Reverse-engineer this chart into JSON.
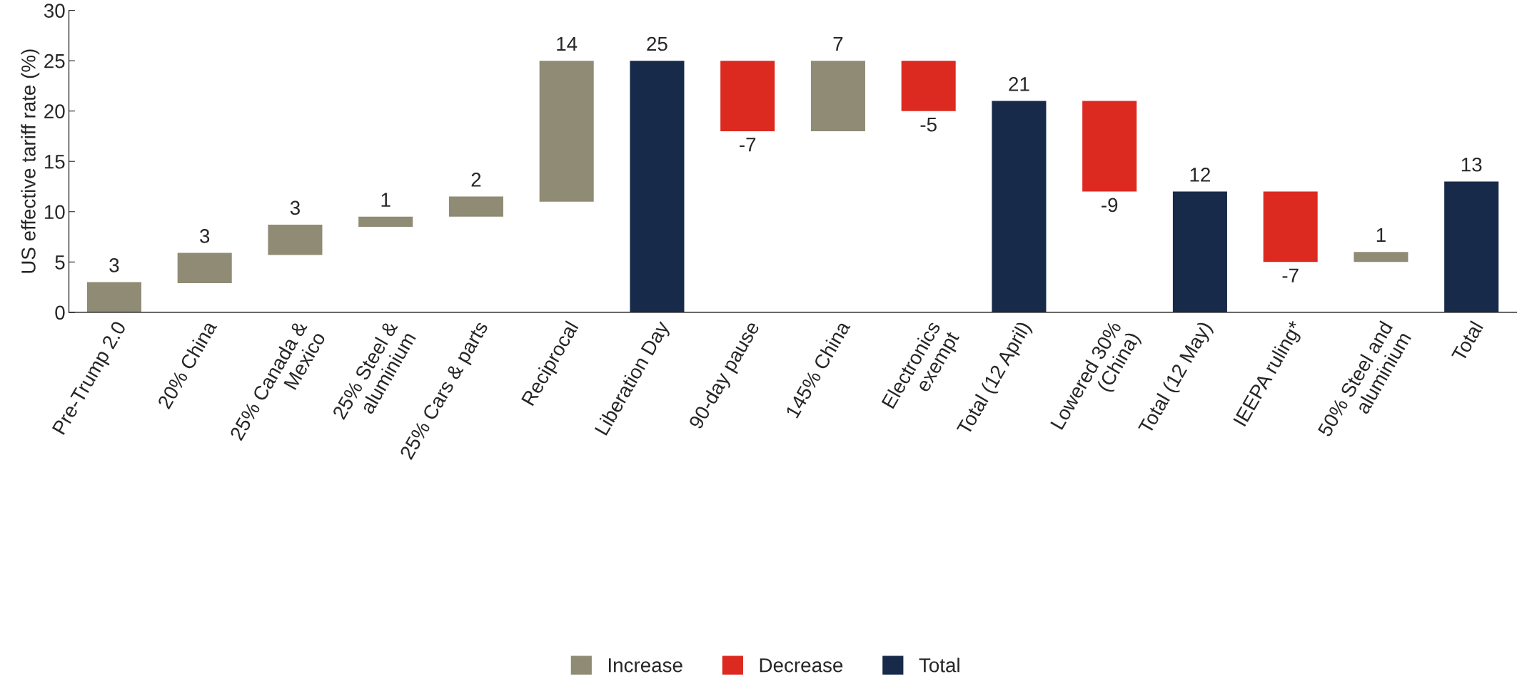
{
  "chart_data": {
    "type": "bar",
    "ylabel": "US effective tariff rate (%)",
    "categories": [
      "Pre-Trump 2.0",
      "20% China",
      "25% Canada &\nMexico",
      "25% Steel &\naluminium",
      "25% Cars & parts",
      "Reciprocal",
      "Liberation Day",
      "90-day pause",
      "145% China",
      "Electronics\nexempt",
      "Total (12 April)",
      "Lowered 30%\n(China)",
      "Total (12 May)",
      "IEEPA ruling*",
      "50% Steel and\naluminium",
      "Total"
    ],
    "series": [
      {
        "name": "Increase",
        "color": "#8f8b74",
        "values": [
          3,
          3,
          3,
          1,
          2,
          14,
          null,
          null,
          7,
          null,
          null,
          null,
          null,
          null,
          1,
          null
        ],
        "base": [
          0,
          2.9,
          5.7,
          8.5,
          9.5,
          11,
          null,
          null,
          18,
          null,
          null,
          null,
          null,
          null,
          5,
          null
        ]
      },
      {
        "name": "Decrease",
        "color": "#dc2a20",
        "values": [
          null,
          null,
          null,
          null,
          null,
          null,
          null,
          -7,
          null,
          -5,
          null,
          -9,
          null,
          -7,
          null,
          null
        ],
        "base": [
          null,
          null,
          null,
          null,
          null,
          null,
          null,
          25,
          null,
          25,
          null,
          21,
          null,
          12,
          null,
          null
        ]
      },
      {
        "name": "Total",
        "color": "#172a49",
        "values": [
          null,
          null,
          null,
          null,
          null,
          null,
          25,
          null,
          null,
          null,
          21,
          null,
          12,
          null,
          null,
          13
        ],
        "base": [
          null,
          null,
          null,
          null,
          null,
          null,
          0,
          null,
          null,
          null,
          0,
          null,
          0,
          null,
          null,
          0
        ]
      }
    ],
    "data_labels": true,
    "ylim": [
      0,
      30
    ],
    "yticks": [
      0,
      5,
      10,
      15,
      20,
      25,
      30
    ],
    "grid": false,
    "legend": "bottom"
  }
}
